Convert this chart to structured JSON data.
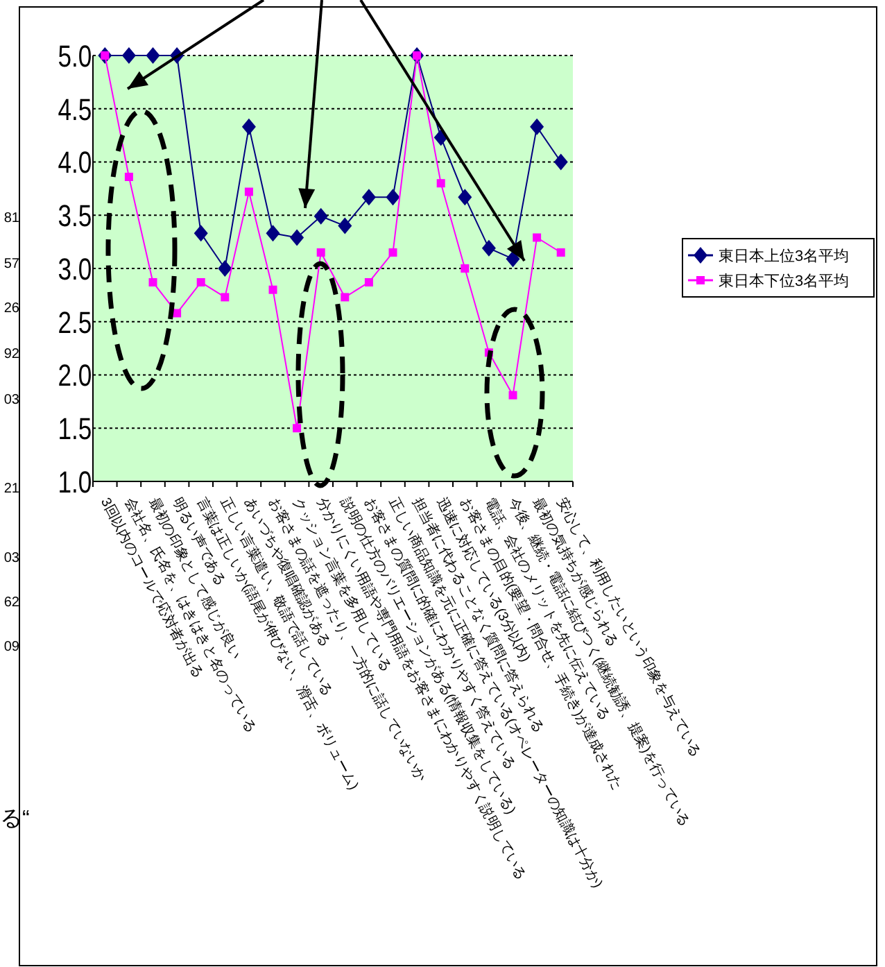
{
  "chart_data": {
    "type": "line",
    "categories": [
      "3回以内のコールで応対者が出る",
      "会社名、氏名を、はきはきと名のっている",
      "最初の印象として感じが良い",
      "明るい声である",
      "言葉は正しいか(語尾が伸びない、滑舌、ボリューム)",
      "正しい言葉遣い、敬語で話している",
      "あいづちや復唱確認がある",
      "お客さまの話を遮ったり、一方的に話していないか",
      "クッション言葉を多用している",
      "分かりにくい用語や専門用語をお客さまにわかりやすく説明している",
      "説明の仕方のバリエーションがある(情報収集をしている)",
      "お客さまの質問に的確にわかりやすく答えている",
      "正しい商品知識を元に正確に答えている(オペレーターの知識は十分か)",
      "担当者に代わることなく質問に答えられる",
      "迅速に対応している(3分以内)",
      "お客さまの目的(要望・問合せ、手続き)が達成された",
      "電話、会社のメリットを先に伝えている",
      "今後、継続・電話に結びつく(継続勧誘、提案)を行っている",
      "最初の気持ちが感じられる",
      "安心して、利用したいという印象を与えている"
    ],
    "series": [
      {
        "name": "東日本上位3名平均",
        "color": "#000080",
        "marker": "diamond",
        "values": [
          5.0,
          5.0,
          5.0,
          5.0,
          3.33,
          3.0,
          4.33,
          3.33,
          3.29,
          3.49,
          3.4,
          3.67,
          3.67,
          5.0,
          4.23,
          3.67,
          3.19,
          3.09,
          4.33,
          4.0
        ]
      },
      {
        "name": "東日本下位3名平均",
        "color": "#ff00ff",
        "marker": "square",
        "values": [
          5.0,
          3.86,
          2.87,
          2.58,
          2.87,
          2.73,
          3.72,
          2.8,
          1.5,
          3.15,
          2.73,
          2.87,
          3.15,
          5.0,
          3.8,
          3.0,
          2.21,
          1.81,
          3.29,
          3.15
        ]
      }
    ],
    "ylim": [
      1.0,
      5.0
    ],
    "yticks": [
      {
        "value": 1.0,
        "label": "1.0"
      },
      {
        "value": 1.5,
        "label": "1.5"
      },
      {
        "value": 2.0,
        "label": "2.0"
      },
      {
        "value": 2.5,
        "label": "2.5"
      },
      {
        "value": 3.0,
        "label": "3.0"
      },
      {
        "value": 3.5,
        "label": "3.5"
      },
      {
        "value": 4.0,
        "label": "4.0"
      },
      {
        "value": 4.5,
        "label": "4.5"
      },
      {
        "value": 5.0,
        "label": "5.0"
      }
    ],
    "grid": "y",
    "legend": "right",
    "line_style": "solid",
    "annotations": [
      "81",
      "57",
      "26",
      "92",
      "03",
      "21",
      "03",
      "62",
      "09",
      "る“"
    ]
  }
}
